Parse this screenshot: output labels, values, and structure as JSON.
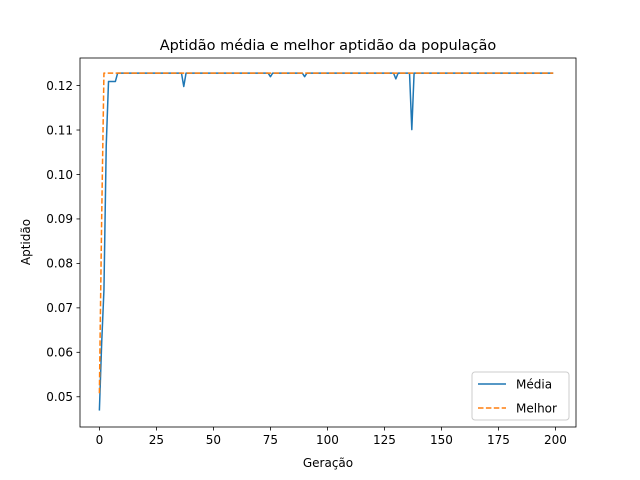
{
  "chart_data": {
    "type": "line",
    "title": "Aptidão média e melhor aptidão da população",
    "xlabel": "Geração",
    "ylabel": "Aptidão",
    "xlim": [
      -8.5,
      209
    ],
    "ylim": [
      0.0432,
      0.1262
    ],
    "xticks": [
      0,
      25,
      50,
      75,
      100,
      125,
      150,
      175,
      200
    ],
    "yticks": [
      0.05,
      0.06,
      0.07,
      0.08,
      0.09,
      0.1,
      0.11,
      0.12
    ],
    "ytick_labels": [
      "0.05",
      "0.06",
      "0.07",
      "0.08",
      "0.09",
      "0.10",
      "0.11",
      "0.12"
    ],
    "grid": false,
    "legend": "lower-right",
    "series": [
      {
        "name": "Média",
        "color": "#1f77b4",
        "dash": "solid",
        "x": [
          0,
          1,
          2,
          3,
          4,
          5,
          6,
          7,
          8,
          36,
          37,
          38,
          74,
          75,
          76,
          89,
          90,
          91,
          129,
          130,
          131,
          136,
          137,
          138,
          199
        ],
        "y": [
          0.0469,
          0.062,
          0.074,
          0.1065,
          0.1209,
          0.1209,
          0.1209,
          0.1209,
          0.1228,
          0.1228,
          0.1198,
          0.1228,
          0.1228,
          0.122,
          0.1228,
          0.1228,
          0.122,
          0.1228,
          0.1228,
          0.1215,
          0.1228,
          0.1228,
          0.1101,
          0.1228,
          0.1228
        ]
      },
      {
        "name": "Melhor",
        "color": "#ff7f0e",
        "dash": "dashed",
        "x": [
          0,
          1,
          2,
          199
        ],
        "y": [
          0.0508,
          0.09,
          0.1228,
          0.1228
        ]
      }
    ]
  }
}
